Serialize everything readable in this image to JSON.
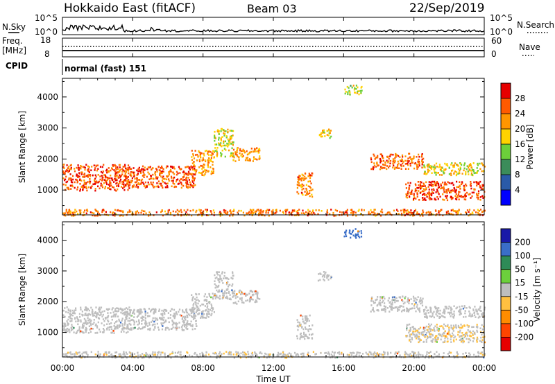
{
  "header": {
    "title": "Hokkaido East (fitACF)",
    "beam": "Beam 03",
    "date": "22/Sep/2019"
  },
  "top_panels": {
    "nsky_label": "N.Sky",
    "nsky_ticks": [
      "10^5",
      "10^0"
    ],
    "nsearch_label": "N.Search",
    "nsearch_ticks": [
      "10^5",
      "10^0"
    ],
    "freq_label": "Freq.",
    "freq_unit": "[MHz]",
    "freq_ticks": [
      "18",
      "8"
    ],
    "nave_label": "Nave",
    "nave_ticks": [
      "60",
      "0"
    ],
    "cpid_label": "CPID",
    "cpid_value": "normal (fast) 151"
  },
  "power_panel": {
    "ylabel": "Slant Range [km]",
    "yticks": [
      "4000",
      "3000",
      "2000",
      "1000"
    ],
    "cbar_label": "Power [dB]",
    "cbar_ticks": [
      "28",
      "24",
      "20",
      "16",
      "12",
      "8",
      "4"
    ],
    "cbar_colors": [
      "#e60000",
      "#ff5a00",
      "#ff9600",
      "#ffd200",
      "#6ccf3a",
      "#3b8c5a",
      "#2a5aa8",
      "#0000ff"
    ]
  },
  "velocity_panel": {
    "ylabel": "Slant Range [km]",
    "yticks": [
      "4000",
      "3000",
      "2000",
      "1000"
    ],
    "cbar_label": "Velocity [m s⁻¹]",
    "cbar_ticks": [
      "200",
      "100",
      "50",
      "15",
      "-15",
      "-50",
      "-100",
      "-200"
    ],
    "cbar_colors": [
      "#1a1aa8",
      "#3a6ec8",
      "#2e8b57",
      "#6cd03c",
      "#bebebe",
      "#ffc040",
      "#ff8c00",
      "#ff4500",
      "#e60000"
    ]
  },
  "xaxis": {
    "ticks": [
      "00:00",
      "04:00",
      "08:00",
      "12:00",
      "16:00",
      "20:00",
      "00:00"
    ],
    "label": "Time UT"
  },
  "chart_data": {
    "type": "heatmap",
    "xlabel": "Time UT",
    "xlim_hours": [
      0,
      24
    ],
    "ylabel": "Slant Range [km]",
    "ylim": [
      200,
      4600
    ],
    "power_range_db": [
      0,
      30
    ],
    "velocity_range": [
      -250,
      250
    ],
    "grid": false,
    "regions": [
      {
        "t0": 0.0,
        "t1": 3.8,
        "r0": 1000,
        "r1": 1850,
        "power": 27,
        "velocity": 0
      },
      {
        "t0": 3.5,
        "t1": 7.6,
        "r0": 1100,
        "r1": 1800,
        "power": 26,
        "velocity": 0
      },
      {
        "t0": 7.3,
        "t1": 8.6,
        "r0": 1500,
        "r1": 2300,
        "power": 22,
        "velocity": 0
      },
      {
        "t0": 8.6,
        "t1": 9.7,
        "r0": 2100,
        "r1": 3000,
        "power": 17,
        "velocity": 0
      },
      {
        "t0": 9.6,
        "t1": 11.2,
        "r0": 1950,
        "r1": 2400,
        "power": 22,
        "velocity": 0
      },
      {
        "t0": 13.3,
        "t1": 14.2,
        "r0": 800,
        "r1": 1600,
        "power": 24,
        "velocity": 0
      },
      {
        "t0": 14.5,
        "t1": 15.3,
        "r0": 2700,
        "r1": 3000,
        "power": 18,
        "velocity": 0
      },
      {
        "t0": 16.0,
        "t1": 17.0,
        "r0": 4100,
        "r1": 4400,
        "power": 16,
        "velocity": 150
      },
      {
        "t0": 17.5,
        "t1": 20.5,
        "r0": 1700,
        "r1": 2200,
        "power": 25,
        "velocity": 0
      },
      {
        "t0": 20.5,
        "t1": 24.0,
        "r0": 1500,
        "r1": 1900,
        "power": 18,
        "velocity": 0
      },
      {
        "t0": 19.5,
        "t1": 24.0,
        "r0": 700,
        "r1": 1300,
        "power": 27,
        "velocity": -10
      },
      {
        "t0": 0.0,
        "t1": 24.0,
        "r0": 200,
        "r1": 400,
        "power": 24,
        "velocity": -5
      }
    ]
  }
}
